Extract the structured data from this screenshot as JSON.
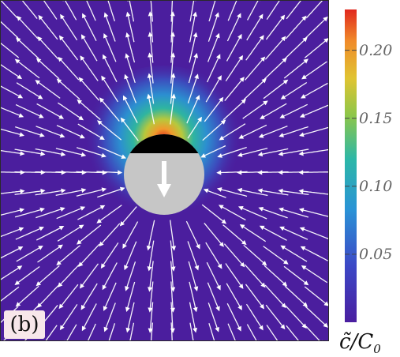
{
  "panel_label": "(b)",
  "chart_data": {
    "type": "heatmap",
    "description_field": "concentration",
    "colorbar": {
      "label": "c̃/C",
      "label_subscript": "0",
      "ticks": [
        {
          "value": 0.05,
          "label": "0.05"
        },
        {
          "value": 0.1,
          "label": "0.10"
        },
        {
          "value": 0.15,
          "label": "0.15"
        },
        {
          "value": 0.2,
          "label": "0.20"
        }
      ],
      "range": [
        0.0,
        0.23
      ],
      "colors": [
        "#4a1ea0",
        "#3f51c8",
        "#2aa0d6",
        "#2fbf8a",
        "#c9c43c",
        "#f0962c",
        "#e0281e"
      ]
    },
    "domain": {
      "x": [
        -1,
        1
      ],
      "y": [
        -1,
        1
      ]
    },
    "particle": {
      "center": [
        0,
        0
      ],
      "radius": 0.27,
      "active_cap_color": "#000000",
      "body_color": "#c6c6c6",
      "motion": "down"
    },
    "streamlines_color": "#ffffff",
    "grid": false
  },
  "colors": {
    "background": "#4b1e9e",
    "hot": "#e0281e"
  }
}
